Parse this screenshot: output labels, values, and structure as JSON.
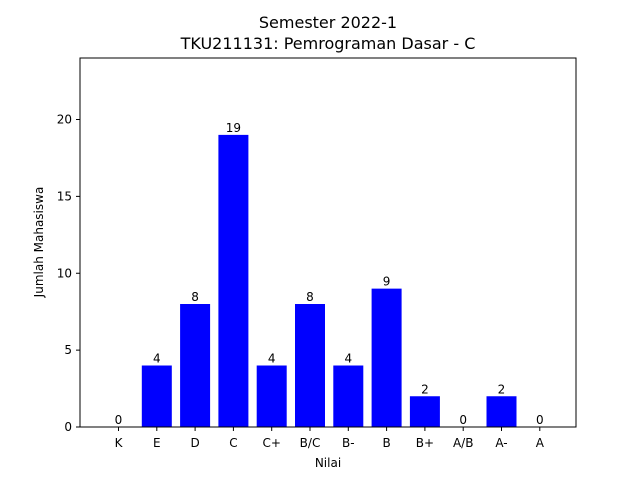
{
  "chart_data": {
    "type": "bar",
    "title": "Semester 2022-1",
    "subtitle": "TKU211131: Pemrograman Dasar - C",
    "xlabel": "Nilai",
    "ylabel": "Jumlah Mahasiswa",
    "categories": [
      "K",
      "E",
      "D",
      "C",
      "C+",
      "B/C",
      "B-",
      "B",
      "B+",
      "A/B",
      "A-",
      "A"
    ],
    "values": [
      0,
      4,
      8,
      19,
      4,
      8,
      4,
      9,
      2,
      0,
      2,
      0
    ],
    "ylim": [
      0,
      24
    ],
    "yticks": [
      0,
      5,
      10,
      15,
      20
    ],
    "bar_color": "#0000ff",
    "grid": false,
    "legend": "none"
  }
}
